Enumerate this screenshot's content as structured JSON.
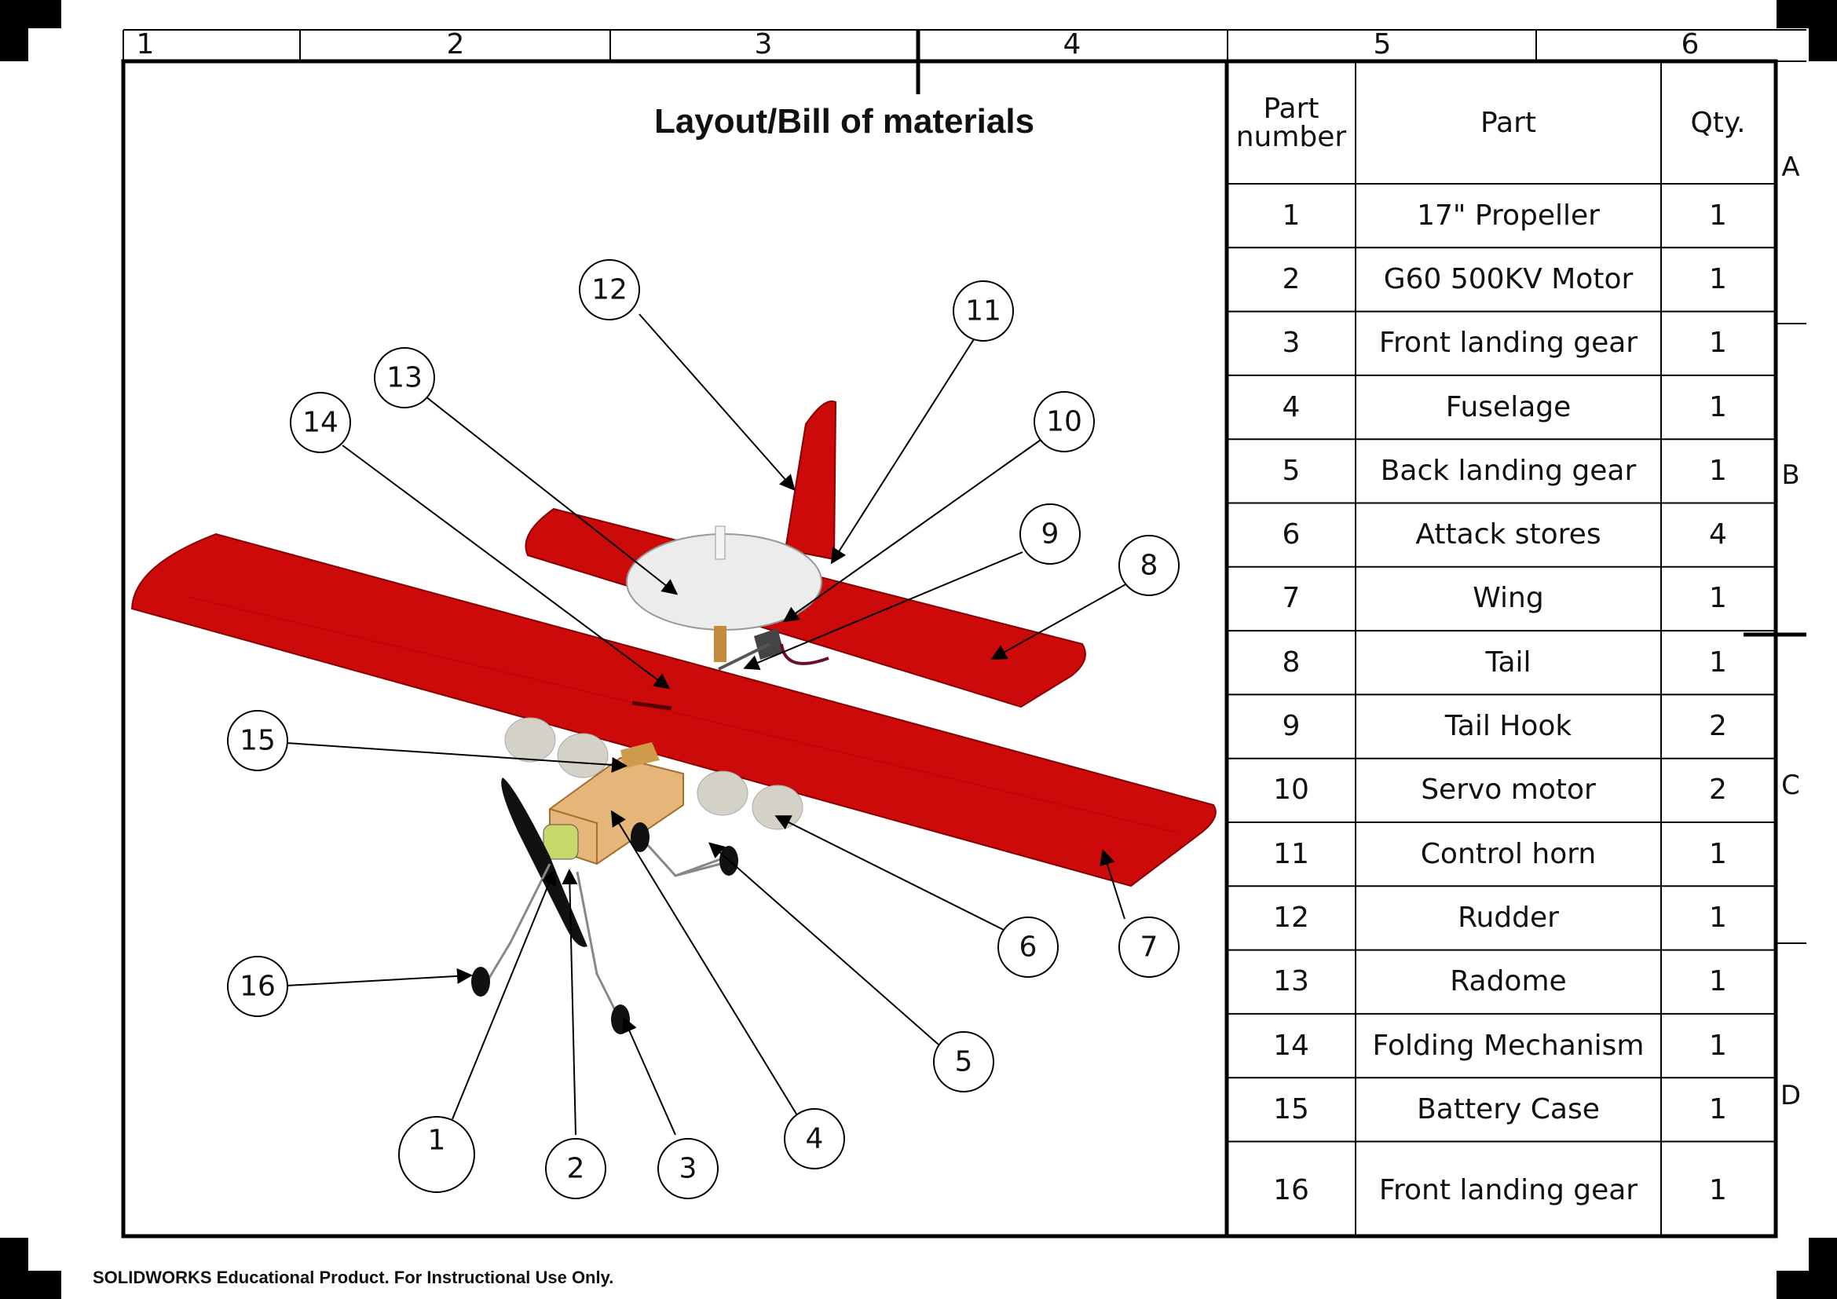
{
  "drawing": {
    "title": "Layout/Bill of materials",
    "footer": "SOLIDWORKS Educational Product. For Instructional Use Only.",
    "zones_top": [
      "1",
      "2",
      "3",
      "4",
      "5",
      "6"
    ],
    "zones_side": [
      "A",
      "B",
      "C",
      "D"
    ]
  },
  "bom": {
    "headers": {
      "part_number": "Part number",
      "part": "Part",
      "qty": "Qty."
    },
    "rows": [
      {
        "num": "1",
        "part": "17\" Propeller",
        "qty": "1"
      },
      {
        "num": "2",
        "part": "G60 500KV Motor",
        "qty": "1"
      },
      {
        "num": "3",
        "part": "Front landing gear",
        "qty": "1"
      },
      {
        "num": "4",
        "part": "Fuselage",
        "qty": "1"
      },
      {
        "num": "5",
        "part": "Back landing gear",
        "qty": "1"
      },
      {
        "num": "6",
        "part": "Attack stores",
        "qty": "4"
      },
      {
        "num": "7",
        "part": "Wing",
        "qty": "1"
      },
      {
        "num": "8",
        "part": "Tail",
        "qty": "1"
      },
      {
        "num": "9",
        "part": "Tail Hook",
        "qty": "2"
      },
      {
        "num": "10",
        "part": "Servo motor",
        "qty": "2"
      },
      {
        "num": "11",
        "part": "Control horn",
        "qty": "1"
      },
      {
        "num": "12",
        "part": "Rudder",
        "qty": "1"
      },
      {
        "num": "13",
        "part": "Radome",
        "qty": "1"
      },
      {
        "num": "14",
        "part": "Folding Mechanism",
        "qty": "1"
      },
      {
        "num": "15",
        "part": "Battery Case",
        "qty": "1"
      },
      {
        "num": "16",
        "part": "Front landing gear",
        "qty": "1"
      }
    ]
  },
  "balloons": [
    "1",
    "2",
    "3",
    "4",
    "5",
    "6",
    "7",
    "8",
    "9",
    "10",
    "11",
    "12",
    "13",
    "14",
    "15",
    "16"
  ],
  "colors": {
    "airframe_red": "#cc0a0a",
    "radome": "#ececec",
    "fuselage": "#e6b579",
    "line": "#000000"
  }
}
